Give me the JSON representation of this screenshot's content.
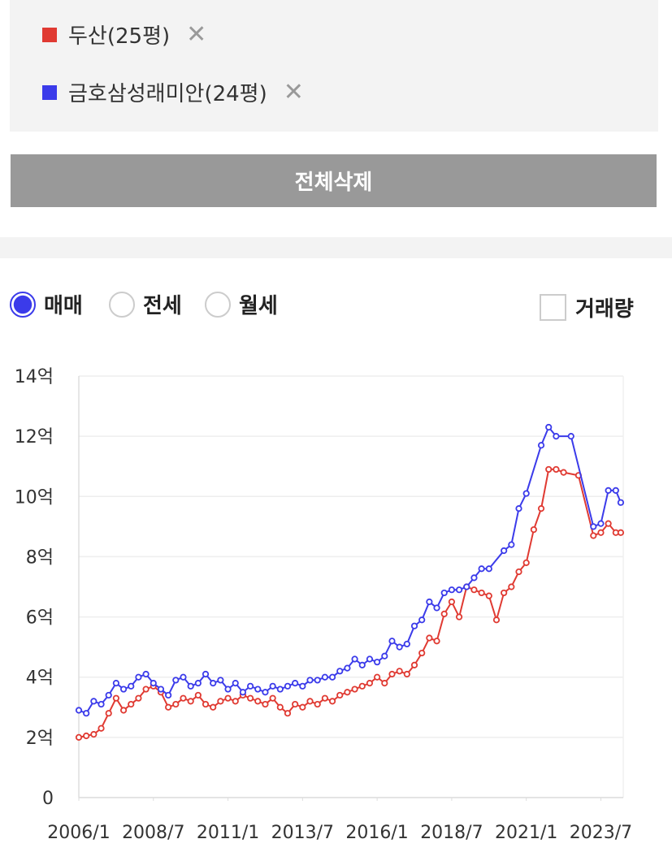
{
  "filters_title": null,
  "button": "전체삭제",
  "trade_types": [
    "매매",
    "전세",
    "월세"
  ],
  "selected_trade_type": 0,
  "volume_checkbox": "거래량",
  "chart_data": {
    "type": "line",
    "ylim": [
      0,
      14
    ],
    "yticks": [
      0,
      {
        "value": 2,
        "label": "2억"
      },
      {
        "value": 4,
        "label": "4억"
      },
      {
        "value": 6,
        "label": "6억"
      },
      {
        "value": 8,
        "label": "8억"
      },
      {
        "value": 10,
        "label": "10억"
      },
      {
        "value": 12,
        "label": "12억"
      },
      {
        "value": 14,
        "label": "14억"
      }
    ],
    "xlim": [
      "2006/1",
      "2024/4"
    ],
    "xticks": [
      "2006/1",
      "2008/7",
      "2011/1",
      "2013/7",
      "2016/1",
      "2018/7",
      "2021/1",
      "2023/7"
    ],
    "grid": true,
    "series": [
      {
        "name": "두산(25평)",
        "color": "#e03a32",
        "x": [
          "2006/1",
          "2006/4",
          "2006/7",
          "2006/10",
          "2007/1",
          "2007/4",
          "2007/7",
          "2007/10",
          "2008/1",
          "2008/4",
          "2008/7",
          "2008/10",
          "2009/1",
          "2009/4",
          "2009/7",
          "2009/10",
          "2010/1",
          "2010/4",
          "2010/7",
          "2010/10",
          "2011/1",
          "2011/4",
          "2011/7",
          "2011/10",
          "2012/1",
          "2012/4",
          "2012/7",
          "2012/10",
          "2013/1",
          "2013/4",
          "2013/7",
          "2013/10",
          "2014/1",
          "2014/4",
          "2014/7",
          "2014/10",
          "2015/1",
          "2015/4",
          "2015/7",
          "2015/10",
          "2016/1",
          "2016/4",
          "2016/7",
          "2016/10",
          "2017/1",
          "2017/4",
          "2017/7",
          "2017/10",
          "2018/1",
          "2018/4",
          "2018/7",
          "2018/10",
          "2019/1",
          "2019/4",
          "2019/7",
          "2019/10",
          "2020/1",
          "2020/4",
          "2020/7",
          "2020/10",
          "2021/1",
          "2021/4",
          "2021/7",
          "2021/10",
          "2022/1",
          "2022/4",
          "2022/10",
          "2023/4",
          "2023/7",
          "2023/10",
          "2024/1",
          "2024/3"
        ],
        "values": [
          2.0,
          2.05,
          2.1,
          2.3,
          2.8,
          3.3,
          2.9,
          3.1,
          3.3,
          3.6,
          3.7,
          3.5,
          3.0,
          3.1,
          3.3,
          3.2,
          3.4,
          3.1,
          3.0,
          3.2,
          3.3,
          3.2,
          3.4,
          3.3,
          3.2,
          3.1,
          3.3,
          3.0,
          2.8,
          3.1,
          3.0,
          3.2,
          3.1,
          3.3,
          3.2,
          3.4,
          3.5,
          3.6,
          3.7,
          3.8,
          4.0,
          3.8,
          4.1,
          4.2,
          4.1,
          4.4,
          4.8,
          5.3,
          5.2,
          6.1,
          6.5,
          6.0,
          7.0,
          6.9,
          6.8,
          6.7,
          5.9,
          6.8,
          7.0,
          7.5,
          7.8,
          8.9,
          9.6,
          10.9,
          10.9,
          10.8,
          10.7,
          8.7,
          8.8,
          9.1,
          8.8,
          8.8
        ]
      },
      {
        "name": "금호삼성래미안(24평)",
        "color": "#3b3bea",
        "x": [
          "2006/1",
          "2006/4",
          "2006/7",
          "2006/10",
          "2007/1",
          "2007/4",
          "2007/7",
          "2007/10",
          "2008/1",
          "2008/4",
          "2008/7",
          "2008/10",
          "2009/1",
          "2009/4",
          "2009/7",
          "2009/10",
          "2010/1",
          "2010/4",
          "2010/7",
          "2010/10",
          "2011/1",
          "2011/4",
          "2011/7",
          "2011/10",
          "2012/1",
          "2012/4",
          "2012/7",
          "2012/10",
          "2013/1",
          "2013/4",
          "2013/7",
          "2013/10",
          "2014/1",
          "2014/4",
          "2014/7",
          "2014/10",
          "2015/1",
          "2015/4",
          "2015/7",
          "2015/10",
          "2016/1",
          "2016/4",
          "2016/7",
          "2016/10",
          "2017/1",
          "2017/4",
          "2017/7",
          "2017/10",
          "2018/1",
          "2018/4",
          "2018/7",
          "2018/10",
          "2019/1",
          "2019/4",
          "2019/7",
          "2019/10",
          "2020/4",
          "2020/7",
          "2020/10",
          "2021/1",
          "2021/7",
          "2021/10",
          "2022/1",
          "2022/7",
          "2023/4",
          "2023/7",
          "2023/10",
          "2024/1",
          "2024/3"
        ],
        "values": [
          2.9,
          2.8,
          3.2,
          3.1,
          3.4,
          3.8,
          3.6,
          3.7,
          4.0,
          4.1,
          3.8,
          3.6,
          3.4,
          3.9,
          4.0,
          3.7,
          3.8,
          4.1,
          3.8,
          3.9,
          3.6,
          3.8,
          3.5,
          3.7,
          3.6,
          3.5,
          3.7,
          3.6,
          3.7,
          3.8,
          3.7,
          3.9,
          3.9,
          4.0,
          4.0,
          4.2,
          4.3,
          4.6,
          4.4,
          4.6,
          4.5,
          4.7,
          5.2,
          5.0,
          5.1,
          5.7,
          5.9,
          6.5,
          6.3,
          6.8,
          6.9,
          6.9,
          7.0,
          7.3,
          7.6,
          7.6,
          8.2,
          8.4,
          9.6,
          10.1,
          11.7,
          12.3,
          12.0,
          12.0,
          9.0,
          9.1,
          10.2,
          10.2,
          9.8
        ]
      }
    ]
  }
}
